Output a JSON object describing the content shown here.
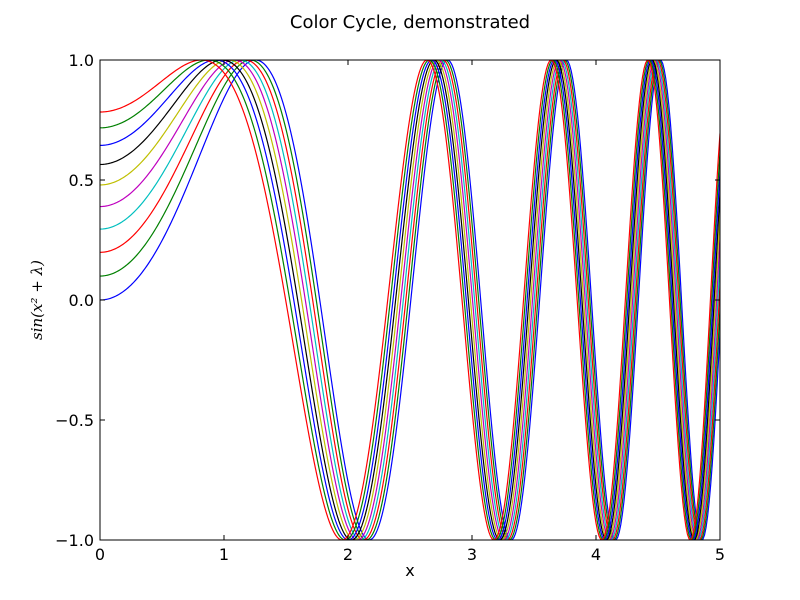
{
  "chart_data": {
    "type": "line",
    "title": "Color Cycle, demonstrated",
    "xlabel": "x",
    "ylabel": "sin(x² + λ)",
    "xlim": [
      0,
      5
    ],
    "ylim": [
      -1.0,
      1.0
    ],
    "xticks": [
      0,
      1,
      2,
      3,
      4,
      5
    ],
    "xtick_labels": [
      "0",
      "1",
      "2",
      "3",
      "4",
      "5"
    ],
    "yticks": [
      -1.0,
      -0.5,
      0.0,
      0.5,
      1.0
    ],
    "ytick_labels": [
      "−1.0",
      "−0.5",
      "0.0",
      "0.5",
      "1.0"
    ],
    "grid": false,
    "function": "y = sin(x^2 + lambda)",
    "sample_count": 400,
    "colors": [
      "#0000ff",
      "#008000",
      "#ff0000",
      "#00bfbf",
      "#bf00bf",
      "#bfbf00",
      "#000000"
    ],
    "series": [
      {
        "lambda": 0.0,
        "color": "#0000ff",
        "y_at_x0": 0.0
      },
      {
        "lambda": 0.1,
        "color": "#008000",
        "y_at_x0": 0.0998
      },
      {
        "lambda": 0.2,
        "color": "#ff0000",
        "y_at_x0": 0.1987
      },
      {
        "lambda": 0.3,
        "color": "#00bfbf",
        "y_at_x0": 0.2955
      },
      {
        "lambda": 0.4,
        "color": "#bf00bf",
        "y_at_x0": 0.3894
      },
      {
        "lambda": 0.5,
        "color": "#bfbf00",
        "y_at_x0": 0.4794
      },
      {
        "lambda": 0.6,
        "color": "#000000",
        "y_at_x0": 0.5646
      },
      {
        "lambda": 0.7,
        "color": "#0000ff",
        "y_at_x0": 0.6442
      },
      {
        "lambda": 0.8,
        "color": "#008000",
        "y_at_x0": 0.7174
      },
      {
        "lambda": 0.9,
        "color": "#ff0000",
        "y_at_x0": 0.7833
      }
    ]
  }
}
